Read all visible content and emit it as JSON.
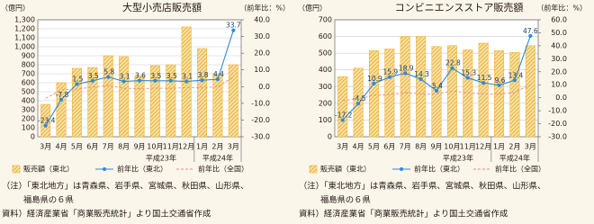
{
  "chart_data": [
    {
      "type": "bar",
      "title": "大型小売店販売額",
      "y_label": "（億円）",
      "y2_label": "（前年比：%）",
      "categories": [
        "3月",
        "4月",
        "5月",
        "6月",
        "7月",
        "8月",
        "9月",
        "10月",
        "11月",
        "12月",
        "1月",
        "2月",
        "3月"
      ],
      "year_labels": [
        "平成23年",
        "平成24年"
      ],
      "series": [
        {
          "name": "販売額（東北）",
          "type": "bar",
          "color": "#f0b43c",
          "values": [
            360,
            600,
            760,
            770,
            900,
            890,
            680,
            790,
            800,
            1220,
            980,
            700,
            800
          ]
        },
        {
          "name": "前年比（東北）",
          "type": "line",
          "axis": "y2",
          "color": "#2e8bd6",
          "data_labels": true,
          "values": [
            -23.4,
            -7.8,
            1.5,
            3.5,
            5.8,
            3.1,
            3.6,
            3.5,
            3.5,
            3.1,
            3.8,
            4.4,
            33.7
          ]
        },
        {
          "name": "前年比（全国）",
          "type": "line",
          "axis": "y2",
          "color": "#e58a8a",
          "dashed": true,
          "values": [
            -7.0,
            -2.0,
            -1.5,
            -0.3,
            0.7,
            -1.0,
            -1.2,
            -0.9,
            -1.0,
            -0.6,
            -0.5,
            -0.2,
            6.0
          ]
        }
      ],
      "ylim": [
        0,
        1300
      ],
      "yticks": [
        0,
        100,
        200,
        300,
        400,
        500,
        600,
        700,
        800,
        900,
        {
          "value": 1000,
          "label": "1,000"
        },
        {
          "value": 1100,
          "label": "1,100"
        },
        {
          "value": 1200,
          "label": "1,200"
        },
        {
          "value": 1300,
          "label": "1,300"
        }
      ],
      "y2lim": [
        -30,
        40
      ],
      "y2ticks": [
        {
          "value": -30,
          "label": "-30.0"
        },
        {
          "value": -20,
          "label": "-20.0"
        },
        {
          "value": -10,
          "label": "-10.0"
        },
        {
          "value": 0,
          "label": "0.0"
        },
        {
          "value": 10,
          "label": "10.0"
        },
        {
          "value": 20,
          "label": "20.0"
        },
        {
          "value": 30,
          "label": "30.0"
        },
        {
          "value": 40,
          "label": "40.0"
        }
      ],
      "grid": true,
      "notes": [
        "（注）「東北地方」は青森県、岩手県、宮城県、秋田県、山形県、",
        "福島県の６県",
        "資料）経済産業省「商業販売統計」より国土交通省作成"
      ]
    },
    {
      "type": "bar",
      "title": "コンビニエンスストア販売額",
      "y_label": "（億円）",
      "y2_label": "（前年比：%）",
      "categories": [
        "3月",
        "4月",
        "5月",
        "6月",
        "7月",
        "8月",
        "9月",
        "10月",
        "11月",
        "12月",
        "1月",
        "2月",
        "3月"
      ],
      "year_labels": [
        "平成23年",
        "平成24年"
      ],
      "series": [
        {
          "name": "販売額（東北）",
          "type": "bar",
          "color": "#f0b43c",
          "values": [
            360,
            410,
            515,
            525,
            600,
            600,
            540,
            545,
            520,
            560,
            515,
            505,
            545
          ]
        },
        {
          "name": "前年比（東北）",
          "type": "line",
          "axis": "y2",
          "color": "#2e8bd6",
          "data_labels": true,
          "values": [
            -17.2,
            -4.5,
            10.9,
            15.9,
            18.9,
            14.3,
            5.4,
            22.8,
            15.3,
            11.5,
            9.6,
            13.4,
            47.6
          ]
        },
        {
          "name": "前年比（全国）",
          "type": "line",
          "axis": "y2",
          "color": "#e58a8a",
          "dashed": true,
          "values": [
            -2.0,
            -1.0,
            2.0,
            2.5,
            4.0,
            3.0,
            3.0,
            5.0,
            4.0,
            3.0,
            3.0,
            4.0,
            10.0
          ]
        }
      ],
      "ylim": [
        0,
        700
      ],
      "yticks": [
        0,
        100,
        200,
        300,
        400,
        500,
        600,
        700
      ],
      "y2lim": [
        -30,
        60
      ],
      "y2ticks": [
        {
          "value": -30,
          "label": "-30.0"
        },
        {
          "value": -20,
          "label": "-20.0"
        },
        {
          "value": -10,
          "label": "-10.0"
        },
        {
          "value": 0,
          "label": "0.0"
        },
        {
          "value": 10,
          "label": "10.0"
        },
        {
          "value": 20,
          "label": "20.0"
        },
        {
          "value": 30,
          "label": "30.0"
        },
        {
          "value": 40,
          "label": "40.0"
        },
        {
          "value": 50,
          "label": "50.0"
        },
        {
          "value": 60,
          "label": "60.0"
        }
      ],
      "grid": true,
      "notes": [
        "（注）「東北地方」は青森県、岩手県、宮城県、秋田県、山形県、",
        "福島県の６県",
        "資料）経済産業省「商業販売統計」より国土交通省作成"
      ]
    }
  ]
}
